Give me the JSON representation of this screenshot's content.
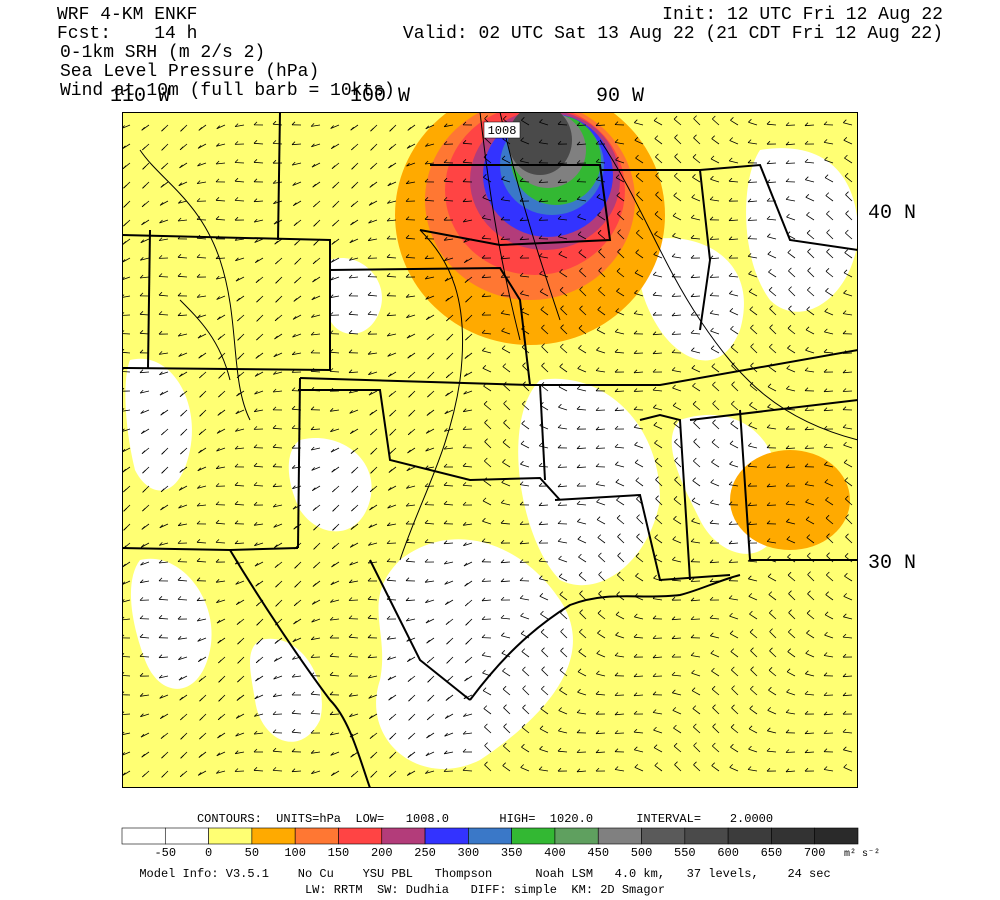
{
  "header": {
    "model": "WRF 4-KM ENKF",
    "forecast": "Fcst:    14 h",
    "init": "Init: 12 UTC Fri 12 Aug 22",
    "valid": "Valid: 02 UTC Sat 13 Aug 22 (21 CDT Fri 12 Aug 22)",
    "fields": [
      "0-1km SRH (m 2/s 2)",
      "Sea Level Pressure (hPa)",
      "Wind at 10m (full barb = 10kts)"
    ]
  },
  "map": {
    "lon_labels": [
      "110 W",
      "100 W",
      "90 W"
    ],
    "lat_labels": [
      "40 N",
      "30 N"
    ],
    "contour_label": "1008"
  },
  "contour_info": "CONTOURS:  UNITS=hPa  LOW=   1008.0       HIGH=  1020.0      INTERVAL=    2.0000",
  "colorbar": {
    "labels": [
      "-50",
      "0",
      "50",
      "100",
      "150",
      "200",
      "250",
      "300",
      "350",
      "400",
      "450",
      "500",
      "550",
      "600",
      "650",
      "700"
    ],
    "colors": [
      "#ffffff",
      "#ffffff",
      "#ffff73",
      "#ffaa00",
      "#ff7733",
      "#ff4444",
      "#b33c7a",
      "#3333ff",
      "#3a78c8",
      "#33b833",
      "#5fa05f",
      "#808080",
      "#5a5a5a",
      "#4a4a4a",
      "#3c3c3c",
      "#333333",
      "#2a2a2a"
    ],
    "units": "m² s⁻²"
  },
  "footer": [
    "Model Info: V3.5.1    No Cu    YSU PBL   Thompson      Noah LSM   4.0 km,   37 levels,    24 sec",
    "LW: RRTM  SW: Dudhia   DIFF: simple  KM: 2D Smagor"
  ]
}
